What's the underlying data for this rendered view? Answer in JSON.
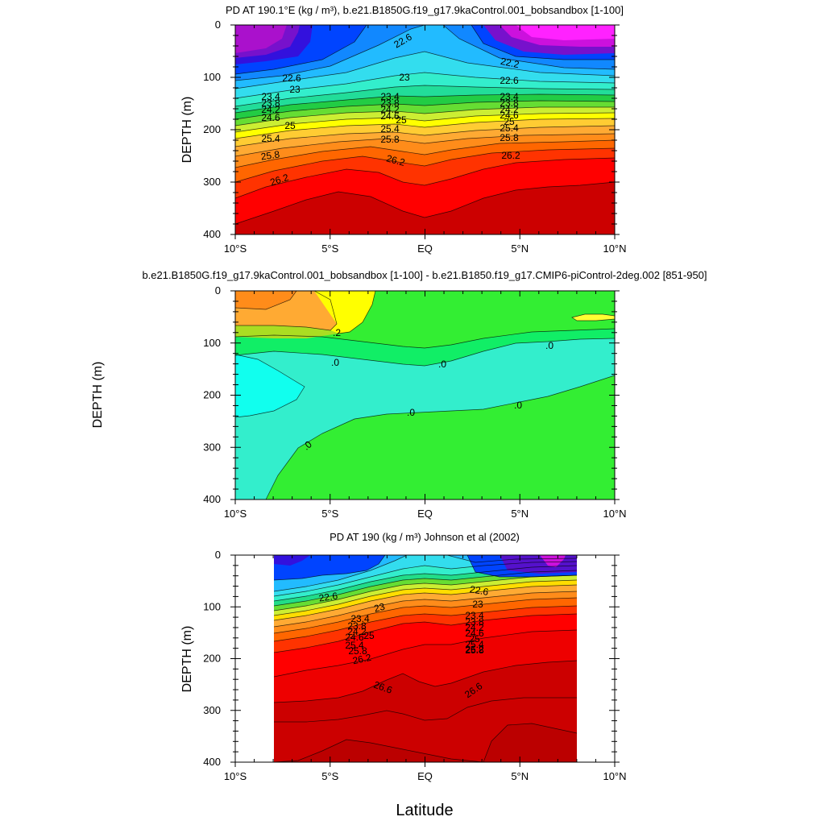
{
  "figure": {
    "xlabel": "Latitude",
    "x_ticks": [
      "10°S",
      "5°S",
      "EQ",
      "5°N",
      "10°N"
    ],
    "y_ticks": [
      "0",
      "100",
      "200",
      "300",
      "400"
    ]
  },
  "chart_data": [
    {
      "type": "contour",
      "title": "PD AT 190.1°E (kg / m³), b.e21.B1850G.f19_g17.9kaControl.001_bobsandbox [1-100]",
      "ylabel": "DEPTH (m)",
      "xlim": [
        -10,
        10
      ],
      "ylim": [
        400,
        0
      ],
      "data_extent": [
        -10,
        10
      ],
      "levels": [
        21.4,
        21.6,
        21.8,
        22.0,
        22.2,
        22.4,
        22.6,
        22.8,
        23.0,
        23.2,
        23.4,
        23.6,
        23.8,
        24.0,
        24.2,
        24.4,
        24.6,
        24.8,
        25.0,
        25.2,
        25.4,
        25.6,
        25.8,
        26.0,
        26.2,
        26.4,
        26.6
      ],
      "contour_labels": [
        "22.6",
        "22.2",
        "22.6",
        "23",
        "22.6",
        "23",
        "23.4",
        "23.8",
        "24.2",
        "24.6",
        "25",
        "25.4",
        "25.8",
        "26.2",
        "23.4",
        "23.8",
        "24.2",
        "24.6",
        "25",
        "25.4",
        "25.8",
        "26.2",
        "23.4",
        "23.8",
        "24.2",
        "24.6",
        "25",
        "25.4",
        "25.8",
        "26.2"
      ]
    },
    {
      "type": "contour",
      "title": "b.e21.B1850G.f19_g17.9kaControl.001_bobsandbox [1-100] - b.e21.B1850.f19_g17.CMIP6-piControl-2deg.002 [851-950]",
      "ylabel": "DEPTH (m)",
      "xlim": [
        -10,
        10
      ],
      "ylim": [
        400,
        0
      ],
      "data_extent": [
        -10,
        10
      ],
      "levels": [
        -0.2,
        -0.1,
        0.0,
        0.1,
        0.2,
        0.3,
        0.4
      ],
      "contour_labels": [
        ".2",
        ".0",
        ".0",
        ".0",
        ".0",
        ".0",
        ".0"
      ]
    },
    {
      "type": "contour",
      "title": "PD AT 190 (kg / m³) Johnson et al (2002)",
      "ylabel": "DEPTH (m)",
      "xlim": [
        -10,
        10
      ],
      "ylim": [
        400,
        0
      ],
      "data_extent": [
        -8,
        8
      ],
      "data_depth_top": 10,
      "levels": [
        21.6,
        21.8,
        22.0,
        22.2,
        22.4,
        22.6,
        22.8,
        23.0,
        23.2,
        23.4,
        23.6,
        23.8,
        24.0,
        24.2,
        24.4,
        24.6,
        24.8,
        25.0,
        25.2,
        25.4,
        25.6,
        25.8,
        26.0,
        26.2,
        26.4,
        26.6,
        26.8
      ],
      "contour_labels": [
        "22.6",
        "23",
        "23.4",
        "23.8",
        "24.2",
        "24.6",
        "25",
        "25.4",
        "25.8",
        "26.2",
        "26.6",
        "22.6",
        "23",
        "23.4",
        "23.8",
        "24.2",
        "24.6",
        "25",
        "25.4",
        "25.8",
        "26.2",
        "26.6"
      ]
    }
  ]
}
